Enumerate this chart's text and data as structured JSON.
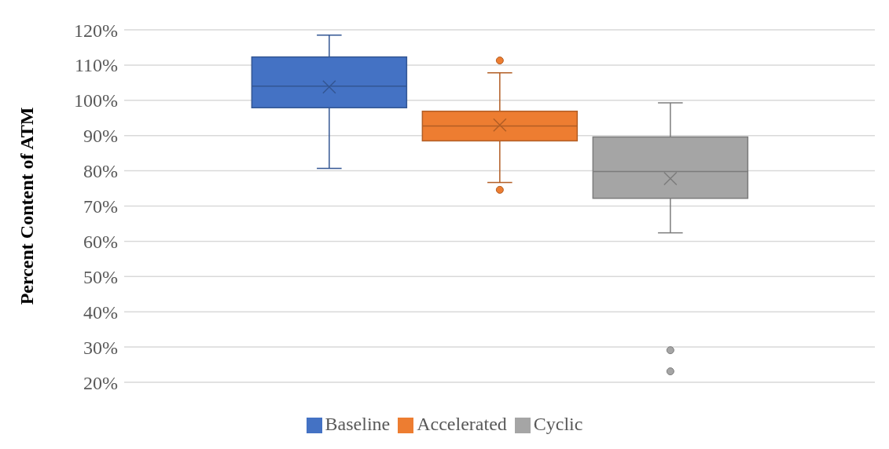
{
  "chart_data": {
    "type": "box",
    "ylabel": "Percent Content of ATM",
    "categories": [
      null
    ],
    "series": [
      {
        "name": "Baseline",
        "color": "#4472c4",
        "boxes": [
          {
            "low": 80.7,
            "q1": 97.9,
            "median": 104,
            "q3": 112.3,
            "high": 118.5,
            "mean": 103.8
          }
        ]
      },
      {
        "name": "Accelerated",
        "color": "#ed7d31",
        "boxes": [
          {
            "low": 76.7,
            "q1": 88.5,
            "median": 92.7,
            "q3": 96.9,
            "high": 107.8,
            "mean": 93,
            "outliers": [
              111.3,
              74.6
            ]
          }
        ]
      },
      {
        "name": "Cyclic",
        "color": "#a5a5a5",
        "boxes": [
          {
            "low": 62.4,
            "q1": 72.2,
            "median": 79.8,
            "q3": 89.6,
            "high": 99.3,
            "mean": 77.8,
            "outliers": [
              29.1,
              23.1
            ]
          }
        ]
      }
    ],
    "ylim": [
      20,
      120
    ],
    "yticks": [
      {
        "value": 20,
        "label": "20%"
      },
      {
        "value": 30,
        "label": "30%"
      },
      {
        "value": 40,
        "label": "40%"
      },
      {
        "value": 50,
        "label": "50%"
      },
      {
        "value": 60,
        "label": "60%"
      },
      {
        "value": 70,
        "label": "70%"
      },
      {
        "value": 80,
        "label": "80%"
      },
      {
        "value": 90,
        "label": "90%"
      },
      {
        "value": 100,
        "label": "100%"
      },
      {
        "value": 110,
        "label": "110%"
      },
      {
        "value": 120,
        "label": "120%"
      }
    ],
    "grid": "y",
    "legend": "bottom"
  }
}
